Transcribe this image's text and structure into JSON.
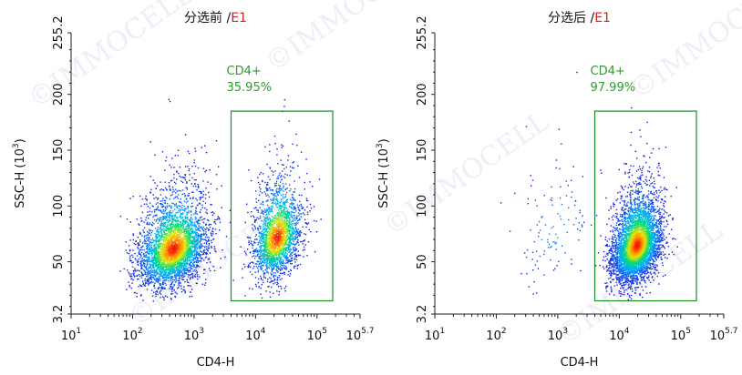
{
  "watermark": "©IMMOCELL",
  "chart_data": [
    {
      "type": "scatter",
      "panel_title": "分选前",
      "panel_title_sep": " /",
      "panel_title_sample": "E1",
      "xlabel": "CD4-H",
      "ylabel": "SSC-H",
      "ylabel_unit": "(10",
      "ylabel_unit_exp": "3",
      "ylabel_unit_close": ")",
      "x_scale": "log",
      "xlim": [
        10,
        501187
      ],
      "ylim": [
        3.2,
        255.2
      ],
      "x_ticks": [
        {
          "value": 10,
          "base": "10",
          "exp": "1"
        },
        {
          "value": 100,
          "base": "10",
          "exp": "2"
        },
        {
          "value": 1000,
          "base": "10",
          "exp": "3"
        },
        {
          "value": 10000,
          "base": "10",
          "exp": "4"
        },
        {
          "value": 100000,
          "base": "10",
          "exp": "5"
        },
        {
          "value": 501187,
          "base": "10",
          "exp": "5.7"
        }
      ],
      "y_ticks": [
        {
          "value": 3.2,
          "label": "3.2"
        },
        {
          "value": 50,
          "label": "50"
        },
        {
          "value": 100,
          "label": "100"
        },
        {
          "value": 150,
          "label": "150"
        },
        {
          "value": 200,
          "label": "200"
        },
        {
          "value": 255.2,
          "label": "255.2"
        }
      ],
      "gate": {
        "name": "CD4+",
        "percent": "35.95%",
        "x_range": [
          4000,
          180000
        ],
        "y_range": [
          15,
          185
        ]
      },
      "populations": [
        {
          "name": "CD4-",
          "x_center": 450,
          "y_center": 62,
          "x_spread_decades": 0.28,
          "y_sd": 16,
          "count": 3800
        },
        {
          "name": "CD4+",
          "x_center": 22000,
          "y_center": 72,
          "x_spread_decades": 0.2,
          "y_sd": 17,
          "count": 2200
        }
      ]
    },
    {
      "type": "scatter",
      "panel_title": "分选后",
      "panel_title_sep": " /",
      "panel_title_sample": "E1",
      "xlabel": "CD4-H",
      "ylabel": "SSC-H",
      "ylabel_unit": "(10",
      "ylabel_unit_exp": "3",
      "ylabel_unit_close": ")",
      "x_scale": "log",
      "xlim": [
        10,
        501187
      ],
      "ylim": [
        3.2,
        255.2
      ],
      "x_ticks": [
        {
          "value": 10,
          "base": "10",
          "exp": "1"
        },
        {
          "value": 100,
          "base": "10",
          "exp": "2"
        },
        {
          "value": 1000,
          "base": "10",
          "exp": "3"
        },
        {
          "value": 10000,
          "base": "10",
          "exp": "4"
        },
        {
          "value": 100000,
          "base": "10",
          "exp": "5"
        },
        {
          "value": 501187,
          "base": "10",
          "exp": "5.7"
        }
      ],
      "y_ticks": [
        {
          "value": 3.2,
          "label": "3.2"
        },
        {
          "value": 50,
          "label": "50"
        },
        {
          "value": 100,
          "label": "100"
        },
        {
          "value": 150,
          "label": "150"
        },
        {
          "value": 200,
          "label": "200"
        },
        {
          "value": 255.2,
          "label": "255.2"
        }
      ],
      "gate": {
        "name": "CD4+",
        "percent": "97.99%",
        "x_range": [
          4000,
          180000
        ],
        "y_range": [
          15,
          185
        ]
      },
      "populations": [
        {
          "name": "CD4+",
          "x_center": 19000,
          "y_center": 65,
          "x_spread_decades": 0.2,
          "y_sd": 15,
          "count": 4500
        },
        {
          "name": "CD4-",
          "x_center": 900,
          "y_center": 80,
          "x_spread_decades": 0.35,
          "y_sd": 25,
          "count": 120
        }
      ]
    }
  ]
}
